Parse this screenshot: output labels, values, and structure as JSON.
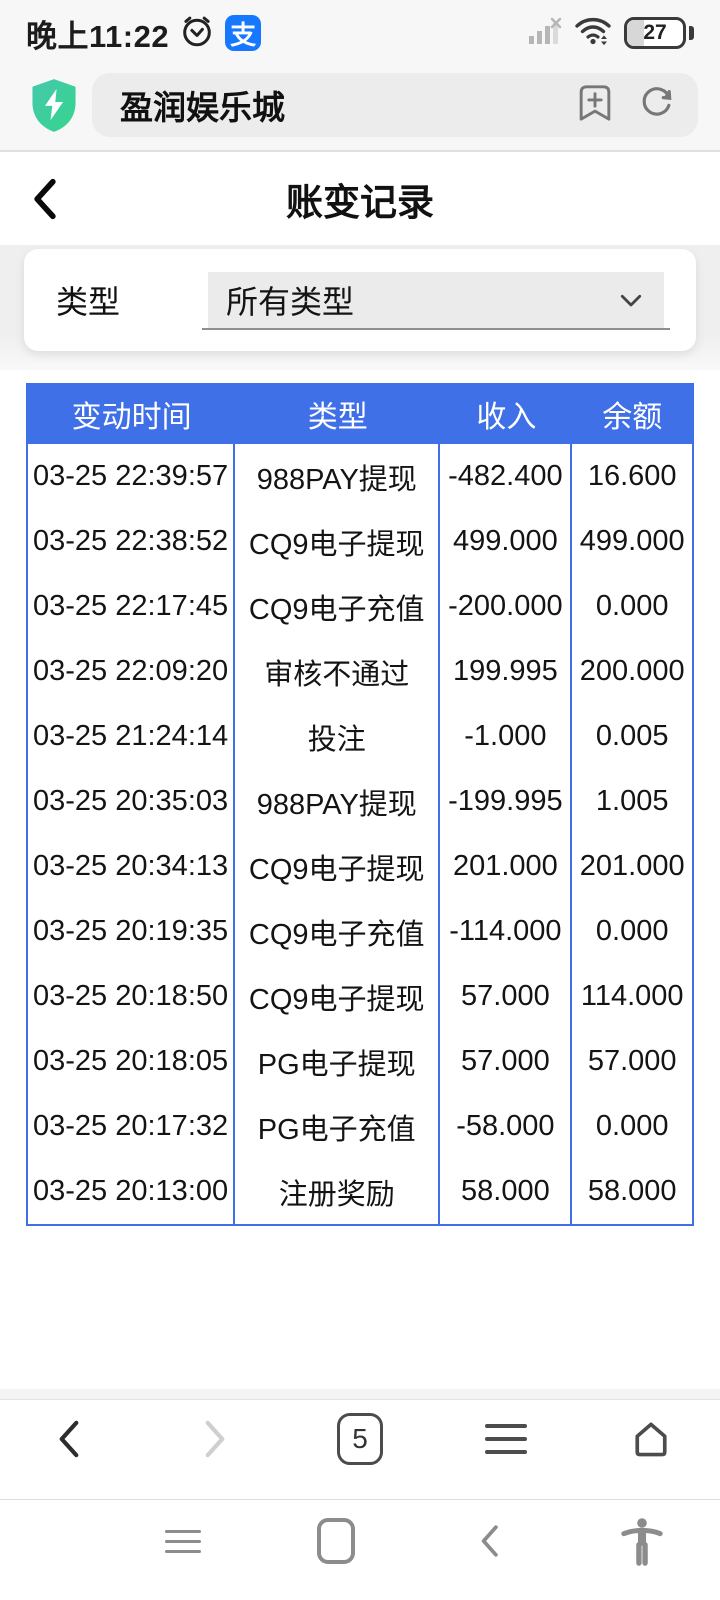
{
  "status_bar": {
    "time": "晚上11:22",
    "battery": "27",
    "alipay_glyph": "支"
  },
  "browser": {
    "address": "盈润娱乐城",
    "tab_count": "5"
  },
  "page": {
    "title": "账变记录",
    "filter_label": "类型",
    "filter_value": "所有类型"
  },
  "table": {
    "headers": [
      "变动时间",
      "类型",
      "收入",
      "余额"
    ],
    "rows": [
      [
        "03-25 22:39:57",
        "988PAY提现",
        "-482.400",
        "16.600"
      ],
      [
        "03-25 22:38:52",
        "CQ9电子提现",
        "499.000",
        "499.000"
      ],
      [
        "03-25 22:17:45",
        "CQ9电子充值",
        "-200.000",
        "0.000"
      ],
      [
        "03-25 22:09:20",
        "审核不通过",
        "199.995",
        "200.000"
      ],
      [
        "03-25 21:24:14",
        "投注",
        "-1.000",
        "0.005"
      ],
      [
        "03-25 20:35:03",
        "988PAY提现",
        "-199.995",
        "1.005"
      ],
      [
        "03-25 20:34:13",
        "CQ9电子提现",
        "201.000",
        "201.000"
      ],
      [
        "03-25 20:19:35",
        "CQ9电子充值",
        "-114.000",
        "0.000"
      ],
      [
        "03-25 20:18:50",
        "CQ9电子提现",
        "57.000",
        "114.000"
      ],
      [
        "03-25 20:18:05",
        "PG电子提现",
        "57.000",
        "57.000"
      ],
      [
        "03-25 20:17:32",
        "PG电子充值",
        "-58.000",
        "0.000"
      ],
      [
        "03-25 20:13:00",
        "注册奖励",
        "58.000",
        "58.000"
      ]
    ]
  },
  "colors": {
    "table_header_blue": "#4070e8",
    "alipay_blue": "#1677ff",
    "shield_green": "#3bcba0"
  }
}
